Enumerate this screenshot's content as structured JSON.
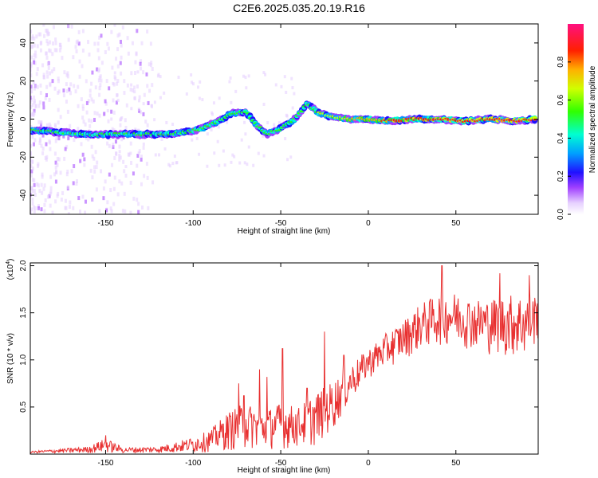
{
  "title": "C2E6.2025.035.20.19.R16",
  "chart_data": [
    {
      "type": "heatmap",
      "xlabel": "Height of straight line (km)",
      "ylabel": "Frequency (Hz)",
      "xlim": [
        -193,
        97
      ],
      "ylim": [
        -50,
        50
      ],
      "xticks": [
        -150,
        -100,
        -50,
        0,
        50
      ],
      "yticks": [
        -40,
        -20,
        0,
        20,
        40
      ],
      "colorbar": {
        "label": "Normalized spectral amplitude",
        "range": [
          0,
          1
        ],
        "ticks": [
          "0.0",
          "0.2",
          "0.4",
          "0.6",
          "0.8"
        ],
        "tick_values": [
          0,
          0.2,
          0.4,
          0.6,
          0.8
        ]
      },
      "ridge": [
        {
          "x": -190,
          "y": -6
        },
        {
          "x": -175,
          "y": -7
        },
        {
          "x": -165,
          "y": -8
        },
        {
          "x": -150,
          "y": -8
        },
        {
          "x": -135,
          "y": -8
        },
        {
          "x": -120,
          "y": -8
        },
        {
          "x": -105,
          "y": -7
        },
        {
          "x": -95,
          "y": -5
        },
        {
          "x": -85,
          "y": -1
        },
        {
          "x": -78,
          "y": 3
        },
        {
          "x": -70,
          "y": 4
        },
        {
          "x": -64,
          "y": -3
        },
        {
          "x": -58,
          "y": -8
        },
        {
          "x": -50,
          "y": -5
        },
        {
          "x": -42,
          "y": 0
        },
        {
          "x": -35,
          "y": 8
        },
        {
          "x": -28,
          "y": 3
        },
        {
          "x": -20,
          "y": 1
        },
        {
          "x": -10,
          "y": 0
        },
        {
          "x": 0,
          "y": 0
        },
        {
          "x": 10,
          "y": -1
        },
        {
          "x": 25,
          "y": 0
        },
        {
          "x": 40,
          "y": 0
        },
        {
          "x": 55,
          "y": -1
        },
        {
          "x": 70,
          "y": 0
        },
        {
          "x": 85,
          "y": -1
        },
        {
          "x": 95,
          "y": 0
        }
      ]
    },
    {
      "type": "line",
      "xlabel": "Height of straight line (km)",
      "ylabel": "SNR (10 * v/v)",
      "yscale_label": "(x10",
      "yscale_exp": "4",
      "xlim": [
        -193,
        97
      ],
      "ylim": [
        0,
        2.03
      ],
      "xticks": [
        -150,
        -100,
        -50,
        0,
        50
      ],
      "yticks": [
        "0.5",
        "1.0",
        "1.5",
        "2.0"
      ],
      "ytick_values": [
        0.5,
        1.0,
        1.5,
        2.0
      ],
      "series": [
        {
          "color": "#e83030",
          "envelope": [
            {
              "x": -193,
              "lo": 0.01,
              "hi": 0.03
            },
            {
              "x": -160,
              "lo": 0.01,
              "hi": 0.08
            },
            {
              "x": -150,
              "lo": 0.01,
              "hi": 0.17
            },
            {
              "x": -140,
              "lo": 0.01,
              "hi": 0.07
            },
            {
              "x": -120,
              "lo": 0.01,
              "hi": 0.08
            },
            {
              "x": -100,
              "lo": 0.01,
              "hi": 0.18
            },
            {
              "x": -90,
              "lo": 0.02,
              "hi": 0.26
            },
            {
              "x": -80,
              "lo": 0.03,
              "hi": 0.45
            },
            {
              "x": -70,
              "lo": 0.04,
              "hi": 0.55
            },
            {
              "x": -60,
              "lo": 0.05,
              "hi": 0.45
            },
            {
              "x": -50,
              "lo": 0.05,
              "hi": 0.55
            },
            {
              "x": -40,
              "lo": 0.06,
              "hi": 0.5
            },
            {
              "x": -30,
              "lo": 0.08,
              "hi": 0.65
            },
            {
              "x": -20,
              "lo": 0.25,
              "hi": 0.78
            },
            {
              "x": -10,
              "lo": 0.55,
              "hi": 0.95
            },
            {
              "x": 0,
              "lo": 0.8,
              "hi": 1.12
            },
            {
              "x": 10,
              "lo": 0.9,
              "hi": 1.28
            },
            {
              "x": 20,
              "lo": 1.0,
              "hi": 1.42
            },
            {
              "x": 30,
              "lo": 1.1,
              "hi": 1.6
            },
            {
              "x": 40,
              "lo": 1.15,
              "hi": 1.7
            },
            {
              "x": 50,
              "lo": 1.15,
              "hi": 1.72
            },
            {
              "x": 60,
              "lo": 1.1,
              "hi": 1.65
            },
            {
              "x": 70,
              "lo": 1.05,
              "hi": 1.65
            },
            {
              "x": 80,
              "lo": 1.02,
              "hi": 1.7
            },
            {
              "x": 90,
              "lo": 1.0,
              "hi": 1.7
            },
            {
              "x": 97,
              "lo": 1.2,
              "hi": 1.7
            }
          ],
          "spikes": [
            {
              "x": -150,
              "y": 0.2
            },
            {
              "x": -74,
              "y": 0.75
            },
            {
              "x": -71,
              "y": 0.62
            },
            {
              "x": -62,
              "y": 0.9
            },
            {
              "x": -58,
              "y": 0.82
            },
            {
              "x": -49,
              "y": 1.12
            },
            {
              "x": -35,
              "y": 0.7
            },
            {
              "x": -25,
              "y": 1.3
            },
            {
              "x": -14,
              "y": 1.05
            },
            {
              "x": 42,
              "y": 2.0
            },
            {
              "x": 75,
              "y": 1.92
            },
            {
              "x": 92,
              "y": 1.9
            }
          ]
        }
      ]
    }
  ]
}
